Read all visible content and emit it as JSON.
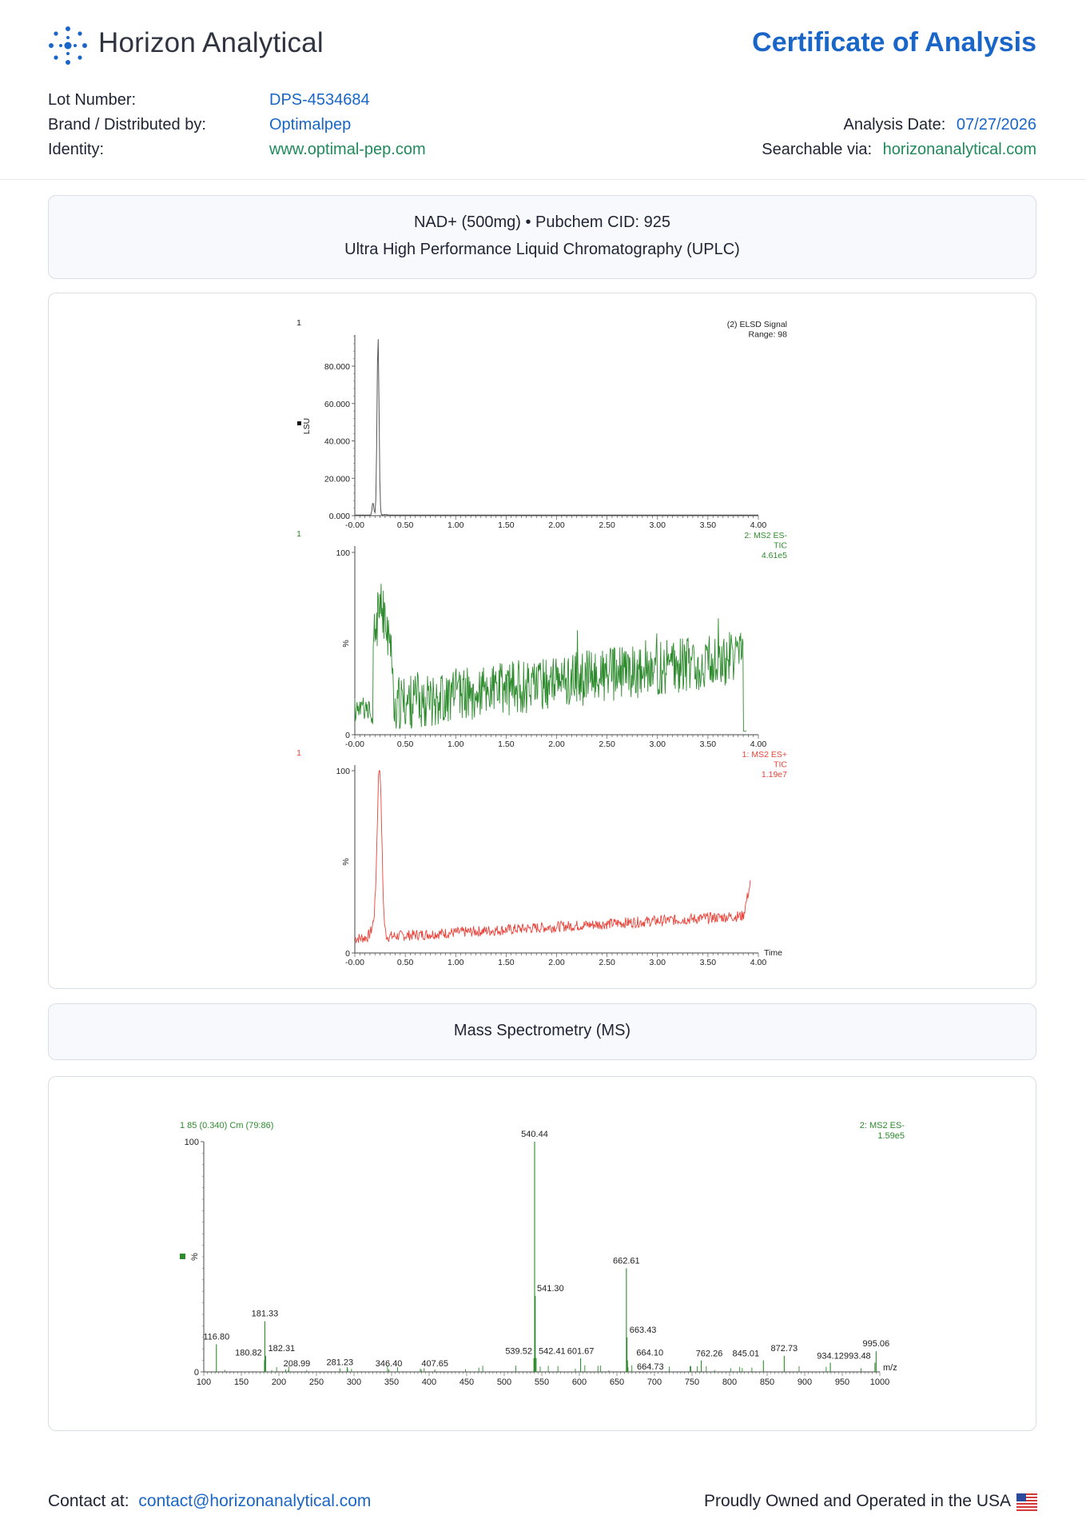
{
  "header": {
    "brand_name": "Horizon Analytical",
    "doc_title": "Certificate of Analysis",
    "lot_label": "Lot Number:",
    "lot_value": "DPS-4534684",
    "brand_label": "Brand / Distributed by:",
    "brand_value": "Optimalpep",
    "identity_label": "Identity:",
    "identity_value": "www.optimal-pep.com",
    "date_label": "Analysis Date:",
    "date_value": "07/27/2026",
    "search_label": "Searchable via:",
    "search_value": "horizonanalytical.com"
  },
  "uplc_section": {
    "line1": "NAD+ (500mg) • Pubchem CID: 925",
    "line2": "Ultra High Performance Liquid Chromatography (UPLC)"
  },
  "ms_section": {
    "title": "Mass Spectrometry (MS)"
  },
  "footer": {
    "contact_label": "Contact at:",
    "contact_email": "contact@horizonanalytical.com",
    "made_in": "Proudly Owned and Operated in the USA"
  },
  "colors": {
    "accent_blue": "#1a66c8",
    "accent_green": "#1f8a5b",
    "elsd": "#555555",
    "ms_neg": "#2e8b2e",
    "ms_pos": "#e8433a"
  },
  "chart_data": [
    {
      "type": "line",
      "panel_id": "1",
      "legend": [
        "(2) ELSD Signal",
        "Range: 98"
      ],
      "ylabel": "LSU",
      "y_ticks": [
        "0.000",
        "20.000",
        "40.000",
        "60.000",
        "80.000"
      ],
      "x_ticks": [
        "-0.00",
        "0.50",
        "1.00",
        "1.50",
        "2.00",
        "2.50",
        "3.00",
        "3.50",
        "4.00"
      ],
      "xlim": [
        0,
        4
      ],
      "ylim": [
        0,
        96
      ],
      "peaks": [
        {
          "x": 0.18,
          "y": 7
        },
        {
          "x": 0.23,
          "y": 96
        }
      ],
      "baseline": 0.3
    },
    {
      "type": "line",
      "panel_id": "1",
      "legend": [
        "2: MS2 ES-",
        "TIC",
        "4.61e5"
      ],
      "ylabel": "%",
      "y_ticks": [
        "0",
        "100"
      ],
      "x_ticks": [
        "-0.00",
        "0.50",
        "1.00",
        "1.50",
        "2.00",
        "2.50",
        "3.00",
        "3.50",
        "4.00"
      ],
      "xlim": [
        0,
        4
      ],
      "ylim": [
        0,
        100
      ]
    },
    {
      "type": "line",
      "panel_id": "1",
      "legend": [
        "1: MS2 ES+",
        "TIC",
        "1.19e7"
      ],
      "ylabel": "%",
      "xlabel": "Time",
      "y_ticks": [
        "0",
        "100"
      ],
      "x_ticks": [
        "-0.00",
        "0.50",
        "1.00",
        "1.50",
        "2.00",
        "2.50",
        "3.00",
        "3.50",
        "4.00"
      ],
      "xlim": [
        0,
        4
      ],
      "ylim": [
        0,
        100
      ]
    },
    {
      "type": "bar",
      "header": "1 85 (0.340) Cm (79:86)",
      "legend": [
        "2: MS2 ES-",
        "1.59e5"
      ],
      "ylabel": "%",
      "xlabel": "m/z",
      "y_ticks": [
        "0",
        "100"
      ],
      "x_ticks": [
        "100",
        "150",
        "200",
        "250",
        "300",
        "350",
        "400",
        "450",
        "500",
        "550",
        "600",
        "650",
        "700",
        "750",
        "800",
        "850",
        "900",
        "950",
        "1000"
      ],
      "xlim": [
        100,
        1000
      ],
      "ylim": [
        0,
        100
      ],
      "labeled_peaks": [
        {
          "mz": 116.8,
          "rel": 12,
          "label": "116.80"
        },
        {
          "mz": 180.82,
          "rel": 5,
          "label": "180.82"
        },
        {
          "mz": 181.33,
          "rel": 22,
          "label": "181.33"
        },
        {
          "mz": 182.31,
          "rel": 7,
          "label": "182.31"
        },
        {
          "mz": 208.99,
          "rel": 1,
          "label": "208.99"
        },
        {
          "mz": 281.23,
          "rel": 1.5,
          "label": "281.23"
        },
        {
          "mz": 346.4,
          "rel": 1,
          "label": "346.40"
        },
        {
          "mz": 407.65,
          "rel": 1,
          "label": "407.65"
        },
        {
          "mz": 539.52,
          "rel": 6,
          "label": "539.52"
        },
        {
          "mz": 540.44,
          "rel": 100,
          "label": "540.44"
        },
        {
          "mz": 541.3,
          "rel": 33,
          "label": "541.30"
        },
        {
          "mz": 542.41,
          "rel": 6,
          "label": "542.41"
        },
        {
          "mz": 601.67,
          "rel": 6,
          "label": "601.67"
        },
        {
          "mz": 662.61,
          "rel": 45,
          "label": "662.61"
        },
        {
          "mz": 663.43,
          "rel": 15,
          "label": "663.43"
        },
        {
          "mz": 664.1,
          "rel": 5,
          "label": "664.10"
        },
        {
          "mz": 664.73,
          "rel": 2,
          "label": "664.73"
        },
        {
          "mz": 762.26,
          "rel": 5,
          "label": "762.26"
        },
        {
          "mz": 845.01,
          "rel": 5,
          "label": "845.01"
        },
        {
          "mz": 872.73,
          "rel": 7,
          "label": "872.73"
        },
        {
          "mz": 934.12,
          "rel": 4,
          "label": "934.12"
        },
        {
          "mz": 993.48,
          "rel": 4,
          "label": "993.48"
        },
        {
          "mz": 995.06,
          "rel": 9,
          "label": "995.06"
        }
      ]
    }
  ]
}
